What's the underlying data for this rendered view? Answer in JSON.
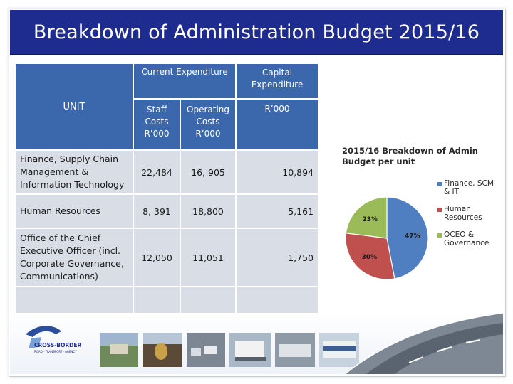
{
  "slide": {
    "title": "Breakdown of Administration Budget 2015/16"
  },
  "table": {
    "unit_header": "UNIT",
    "current_expenditure_header": "Current Expenditure",
    "capital_expenditure_header": "Capital Expenditure",
    "staff_costs_header": "Staff Costs R’000",
    "operating_costs_header": "Operating Costs R’000",
    "capital_unit_header": "R’000",
    "rows": [
      {
        "unit": "Finance, Supply Chain Management & Information Technology",
        "staff": "22,484",
        "operating": "16, 905",
        "capital": "10,894"
      },
      {
        "unit": "Human Resources",
        "staff": "8, 391",
        "operating": "18,800",
        "capital": "5,161"
      },
      {
        "unit": "Office of the Chief Executive Officer (incl. Corporate Governance, Communications)",
        "staff": "12,050",
        "operating": "11,051",
        "capital": "1,750"
      },
      {
        "unit": "",
        "staff": "",
        "operating": "",
        "capital": ""
      }
    ]
  },
  "chart_data": {
    "type": "pie",
    "title": "2015/16 Breakdown of Admin Budget per unit",
    "categories": [
      "Finance, SCM & IT",
      "Human Resources",
      "OCEO & Governance"
    ],
    "values": [
      47,
      30,
      23
    ],
    "labels": [
      "47%",
      "30%",
      "23%"
    ],
    "colors": [
      "#4f7fc0",
      "#c0504d",
      "#9bbb59"
    ],
    "legend_position": "right"
  },
  "footer": {
    "logo_text": "CROSS-BORDER",
    "logo_subtext": "ROAD · TRANSPORT · AGENCY"
  }
}
